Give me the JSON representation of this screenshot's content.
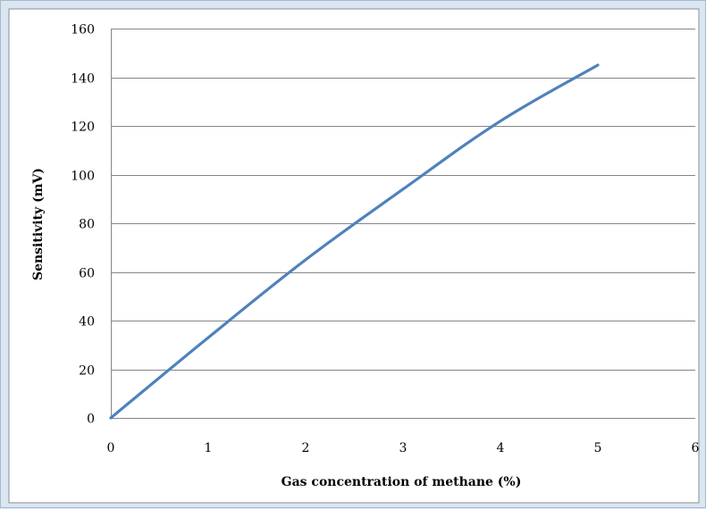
{
  "chart_data": {
    "type": "line",
    "title": "",
    "xlabel": "Gas concentration of methane (%)",
    "ylabel": "Sensitivity (mV)",
    "xlim": [
      0,
      6
    ],
    "ylim": [
      0,
      160
    ],
    "x_ticks": [
      "0",
      "1",
      "2",
      "3",
      "4",
      "5",
      "6"
    ],
    "y_ticks": [
      "0",
      "20",
      "40",
      "60",
      "80",
      "100",
      "120",
      "140",
      "160"
    ],
    "grid": "horizontal",
    "legend": "none",
    "series": [
      {
        "color": "#4f81bd",
        "x": [
          0,
          1,
          2,
          3,
          4,
          5
        ],
        "y": [
          0,
          33,
          65,
          94,
          122,
          145
        ]
      }
    ]
  },
  "colors": {
    "outer_background": "#dbe6f3",
    "plot_background": "#ffffff",
    "gridline": "#868686",
    "series_line": "#4f81bd"
  }
}
